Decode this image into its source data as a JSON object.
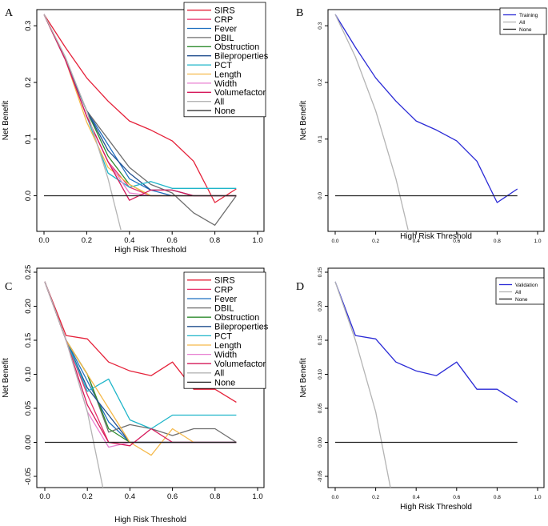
{
  "chart_data": [
    {
      "panel": "A",
      "type": "line",
      "xlabel": "High Risk Threshold",
      "ylabel": "Net Benefit",
      "xlim": [
        0,
        1
      ],
      "ylim": [
        -0.06,
        0.32
      ],
      "xticks": [
        "0.0",
        "0.2",
        "0.4",
        "0.6",
        "0.8",
        "1.0"
      ],
      "yticks": [
        "0.0",
        "0.1",
        "0.2",
        "0.3"
      ],
      "legend_position": "top-right",
      "series": [
        {
          "name": "SIRS",
          "color": "#e5223a",
          "x": [
            0,
            0.1,
            0.2,
            0.3,
            0.4,
            0.5,
            0.6,
            0.7,
            0.8,
            0.9
          ],
          "y": [
            0.32,
            0.262,
            0.208,
            0.167,
            0.132,
            0.116,
            0.097,
            0.061,
            -0.012,
            0.012
          ]
        },
        {
          "name": "CRP",
          "color": "#e8336b",
          "x": [
            0,
            0.1,
            0.2,
            0.3,
            0.4,
            0.5,
            0.6,
            0.7,
            0.8,
            0.9
          ],
          "y": [
            0.32,
            0.24,
            0.14,
            0.06,
            0.015,
            0.0,
            0.0,
            0.0,
            0.0,
            0.0
          ]
        },
        {
          "name": "Fever",
          "color": "#1f6fc0",
          "x": [
            0,
            0.1,
            0.2,
            0.3,
            0.4,
            0.5,
            0.6,
            0.7,
            0.8,
            0.9
          ],
          "y": [
            0.32,
            0.24,
            0.15,
            0.09,
            0.03,
            0.01,
            0.0,
            0.0,
            0.0,
            0.0
          ]
        },
        {
          "name": "DBIL",
          "color": "#6e6e6e",
          "x": [
            0,
            0.1,
            0.2,
            0.3,
            0.4,
            0.5,
            0.6,
            0.7,
            0.8,
            0.9
          ],
          "y": [
            0.32,
            0.24,
            0.15,
            0.1,
            0.05,
            0.02,
            0.005,
            -0.03,
            -0.052,
            0.0
          ]
        },
        {
          "name": "Obstruction",
          "color": "#2e8b2e",
          "x": [
            0,
            0.1,
            0.2,
            0.3,
            0.4,
            0.5,
            0.6,
            0.7,
            0.8,
            0.9
          ],
          "y": [
            0.32,
            0.24,
            0.15,
            0.07,
            0.02,
            0.0,
            0.0,
            0.0,
            0.0,
            0.0
          ]
        },
        {
          "name": "Bileproperties",
          "color": "#214f8f",
          "x": [
            0,
            0.1,
            0.2,
            0.3,
            0.4,
            0.5,
            0.6,
            0.7,
            0.8,
            0.9
          ],
          "y": [
            0.32,
            0.24,
            0.15,
            0.08,
            0.04,
            0.01,
            0.01,
            0.0,
            0.0,
            0.0
          ]
        },
        {
          "name": "PCT",
          "color": "#1fb5c9",
          "x": [
            0,
            0.1,
            0.2,
            0.3,
            0.4,
            0.5,
            0.6,
            0.7,
            0.8,
            0.9
          ],
          "y": [
            0.32,
            0.24,
            0.14,
            0.04,
            0.015,
            0.025,
            0.013,
            0.013,
            0.013,
            0.013
          ]
        },
        {
          "name": "Length",
          "color": "#f5b94a",
          "x": [
            0,
            0.1,
            0.2,
            0.3,
            0.4,
            0.5,
            0.6,
            0.7,
            0.8,
            0.9
          ],
          "y": [
            0.32,
            0.24,
            0.13,
            0.05,
            0.02,
            0.0,
            0.0,
            0.0,
            0.0,
            0.0
          ]
        },
        {
          "name": "Width",
          "color": "#e87fd0",
          "x": [
            0,
            0.1,
            0.2,
            0.3,
            0.4,
            0.5,
            0.6,
            0.7,
            0.8,
            0.9
          ],
          "y": [
            0.32,
            0.24,
            0.14,
            0.06,
            0.005,
            0.0,
            0.0,
            0.0,
            0.0,
            0.0
          ]
        },
        {
          "name": "Volumefactor",
          "color": "#d6195a",
          "x": [
            0,
            0.1,
            0.2,
            0.3,
            0.4,
            0.5,
            0.6,
            0.7,
            0.8,
            0.9
          ],
          "y": [
            0.32,
            0.24,
            0.14,
            0.06,
            -0.008,
            0.01,
            0.01,
            0.0,
            0.0,
            0.0
          ]
        },
        {
          "name": "All",
          "color": "#b4b4b4",
          "x": [
            0,
            0.1,
            0.2,
            0.3,
            0.36
          ],
          "y": [
            0.32,
            0.245,
            0.15,
            0.03,
            -0.06
          ]
        },
        {
          "name": "None",
          "color": "#222222",
          "x": [
            0,
            0.9
          ],
          "y": [
            0,
            0
          ]
        }
      ]
    },
    {
      "panel": "B",
      "type": "line",
      "xlabel": "High Risk Threshold",
      "ylabel": "Net Benefit",
      "xlim": [
        0,
        1
      ],
      "ylim": [
        -0.06,
        0.32
      ],
      "xticks": [
        "0.0",
        "0.2",
        "0.4",
        "0.6",
        "0.8",
        "1.0"
      ],
      "yticks": [
        "0.0",
        "0.1",
        "0.2",
        "0.3"
      ],
      "legend_position": "top-right",
      "series": [
        {
          "name": "Training",
          "color": "#2b2bd6",
          "x": [
            0,
            0.1,
            0.2,
            0.3,
            0.4,
            0.5,
            0.6,
            0.7,
            0.8,
            0.9
          ],
          "y": [
            0.32,
            0.262,
            0.208,
            0.167,
            0.132,
            0.116,
            0.097,
            0.061,
            -0.012,
            0.012
          ]
        },
        {
          "name": "All",
          "color": "#b4b4b4",
          "x": [
            0,
            0.1,
            0.2,
            0.3,
            0.36
          ],
          "y": [
            0.32,
            0.245,
            0.15,
            0.03,
            -0.06
          ]
        },
        {
          "name": "None",
          "color": "#222222",
          "x": [
            0,
            0.9
          ],
          "y": [
            0,
            0
          ]
        }
      ]
    },
    {
      "panel": "C",
      "type": "line",
      "xlabel": "High Risk Threshold",
      "ylabel": "Net Benefit",
      "xlim": [
        0,
        1
      ],
      "ylim": [
        -0.07,
        0.25
      ],
      "xticks": [
        "0.0",
        "0.2",
        "0.4",
        "0.6",
        "0.8",
        "1.0"
      ],
      "yticks": [
        "-0.05",
        "0.00",
        "0.05",
        "0.10",
        "0.15",
        "0.20",
        "0.25"
      ],
      "legend_position": "top-right",
      "series": [
        {
          "name": "SIRS",
          "color": "#e5223a",
          "x": [
            0,
            0.1,
            0.2,
            0.3,
            0.4,
            0.5,
            0.6,
            0.7,
            0.8,
            0.9
          ],
          "y": [
            0.236,
            0.157,
            0.152,
            0.118,
            0.105,
            0.098,
            0.118,
            0.078,
            0.078,
            0.059
          ]
        },
        {
          "name": "CRP",
          "color": "#e8336b",
          "x": [
            0,
            0.1,
            0.2,
            0.3,
            0.4,
            0.5,
            0.6,
            0.7,
            0.8,
            0.9
          ],
          "y": [
            0.236,
            0.15,
            0.07,
            0.0,
            0.0,
            0.0,
            0.0,
            0.0,
            0.0,
            0.0
          ]
        },
        {
          "name": "Fever",
          "color": "#1f6fc0",
          "x": [
            0,
            0.1,
            0.2,
            0.3,
            0.4,
            0.5,
            0.6,
            0.7,
            0.8,
            0.9
          ],
          "y": [
            0.236,
            0.15,
            0.09,
            0.03,
            0.0,
            0.0,
            0.0,
            0.0,
            0.0,
            0.0
          ]
        },
        {
          "name": "DBIL",
          "color": "#6e6e6e",
          "x": [
            0,
            0.1,
            0.2,
            0.3,
            0.4,
            0.5,
            0.6,
            0.7,
            0.8,
            0.9
          ],
          "y": [
            0.236,
            0.15,
            0.1,
            0.015,
            0.026,
            0.02,
            0.01,
            0.02,
            0.02,
            0.0
          ]
        },
        {
          "name": "Obstruction",
          "color": "#2e8b2e",
          "x": [
            0,
            0.1,
            0.2,
            0.3,
            0.4,
            0.5,
            0.6,
            0.7,
            0.8,
            0.9
          ],
          "y": [
            0.236,
            0.15,
            0.1,
            0.02,
            0.0,
            0.0,
            0.0,
            0.0,
            0.0,
            0.0
          ]
        },
        {
          "name": "Bileproperties",
          "color": "#214f8f",
          "x": [
            0,
            0.1,
            0.2,
            0.3,
            0.4,
            0.5,
            0.6,
            0.7,
            0.8,
            0.9
          ],
          "y": [
            0.236,
            0.15,
            0.08,
            0.04,
            0.0,
            0.0,
            0.0,
            0.0,
            0.0,
            0.0
          ]
        },
        {
          "name": "PCT",
          "color": "#1fb5c9",
          "x": [
            0,
            0.1,
            0.2,
            0.3,
            0.4,
            0.5,
            0.6,
            0.7,
            0.8,
            0.9
          ],
          "y": [
            0.236,
            0.15,
            0.075,
            0.093,
            0.033,
            0.02,
            0.04,
            0.04,
            0.04,
            0.04
          ]
        },
        {
          "name": "Length",
          "color": "#f5b94a",
          "x": [
            0,
            0.1,
            0.2,
            0.3,
            0.4,
            0.5,
            0.6,
            0.7
          ],
          "y": [
            0.236,
            0.15,
            0.1,
            0.05,
            0.0,
            -0.019,
            0.02,
            0.0
          ]
        },
        {
          "name": "Width",
          "color": "#e87fd0",
          "x": [
            0,
            0.1,
            0.2,
            0.3,
            0.4,
            0.5,
            0.6,
            0.7,
            0.8,
            0.9
          ],
          "y": [
            0.236,
            0.15,
            0.045,
            -0.007,
            0.0,
            0.0,
            0.0,
            0.0,
            0.0,
            0.0
          ]
        },
        {
          "name": "Volumefactor",
          "color": "#d6195a",
          "x": [
            0,
            0.1,
            0.2,
            0.3,
            0.4,
            0.5,
            0.6,
            0.7,
            0.8,
            0.9
          ],
          "y": [
            0.236,
            0.15,
            0.055,
            0.0,
            -0.005,
            0.02,
            0.0,
            0.0,
            0.0,
            0.0
          ]
        },
        {
          "name": "All",
          "color": "#b4b4b4",
          "x": [
            0,
            0.1,
            0.2,
            0.275
          ],
          "y": [
            0.236,
            0.15,
            0.045,
            -0.07
          ]
        },
        {
          "name": "None",
          "color": "#222222",
          "x": [
            0,
            0.9
          ],
          "y": [
            0,
            0
          ]
        }
      ]
    },
    {
      "panel": "D",
      "type": "line",
      "xlabel": "High Risk Threshold",
      "ylabel": "Net Benefit",
      "xlim": [
        0,
        1
      ],
      "ylim": [
        -0.07,
        0.25
      ],
      "xticks": [
        "0.0",
        "0.2",
        "0.4",
        "0.6",
        "0.8",
        "1.0"
      ],
      "yticks": [
        "-0.05",
        "0.00",
        "0.05",
        "0.10",
        "0.15",
        "0.20",
        "0.25"
      ],
      "legend_position": "top-right",
      "series": [
        {
          "name": "Validation",
          "color": "#2b2bd6",
          "x": [
            0,
            0.1,
            0.2,
            0.3,
            0.4,
            0.5,
            0.6,
            0.7,
            0.8,
            0.9
          ],
          "y": [
            0.236,
            0.157,
            0.152,
            0.118,
            0.105,
            0.098,
            0.118,
            0.078,
            0.078,
            0.059
          ]
        },
        {
          "name": "All",
          "color": "#b4b4b4",
          "x": [
            0,
            0.1,
            0.2,
            0.275
          ],
          "y": [
            0.236,
            0.15,
            0.045,
            -0.07
          ]
        },
        {
          "name": "None",
          "color": "#222222",
          "x": [
            0,
            0.9
          ],
          "y": [
            0,
            0
          ]
        }
      ]
    }
  ]
}
